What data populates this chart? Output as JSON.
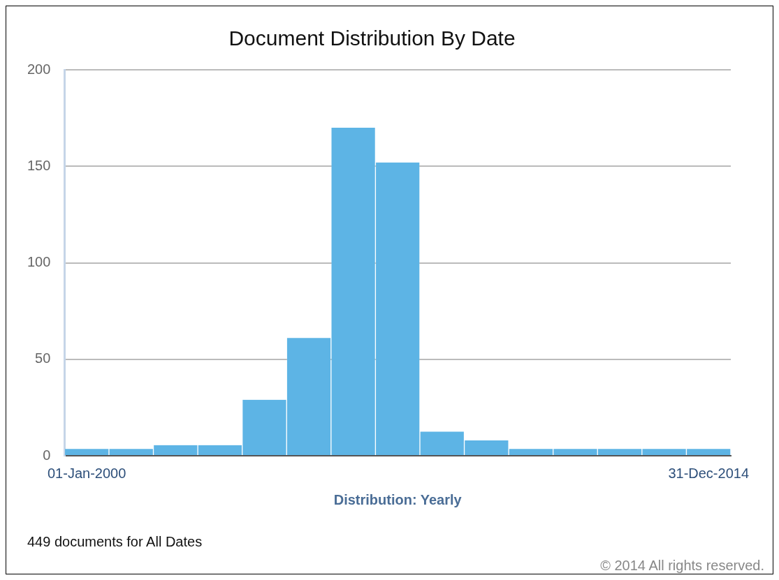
{
  "chart_data": {
    "type": "bar",
    "title": "Document Distribution By Date",
    "xlabel": "Distribution: Yearly",
    "categories": [
      "01-Jan-2000",
      null,
      null,
      null,
      null,
      null,
      null,
      null,
      null,
      null,
      null,
      null,
      null,
      null,
      "31-Dec-2014"
    ],
    "values": [
      3.5,
      3.5,
      5.5,
      5.5,
      29,
      61,
      170,
      152,
      12.5,
      8,
      3.5,
      3.5,
      3.5,
      3.5,
      3.5
    ],
    "color": "#5db4e5",
    "ylim": [
      0,
      200
    ],
    "yticks": [
      0,
      50,
      100,
      150,
      200
    ],
    "grid": "y",
    "legend": false,
    "annotations": [
      "449 documents for All Dates",
      "© 2014 All rights reserved."
    ]
  }
}
